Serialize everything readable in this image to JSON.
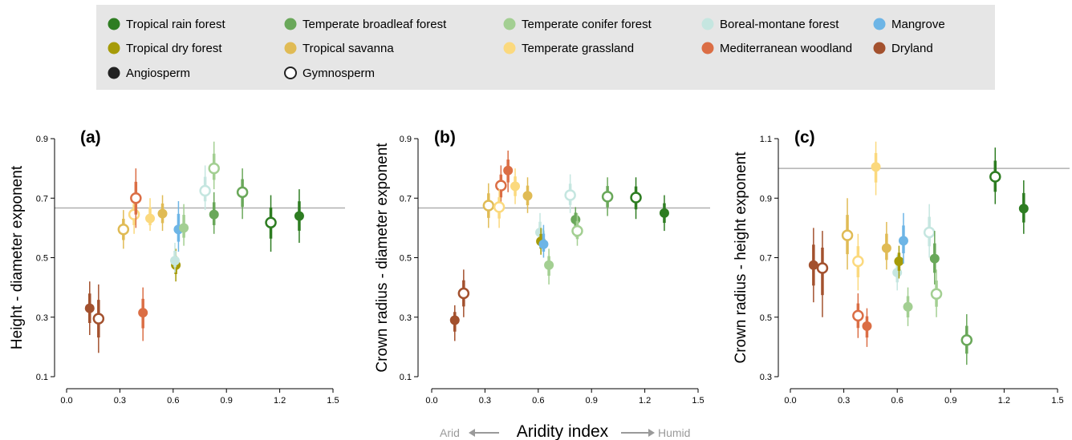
{
  "legend": {
    "biomes": [
      {
        "name": "Tropical rain forest",
        "color": "#2e7d22"
      },
      {
        "name": "Temperate broadleaf forest",
        "color": "#6aa85a"
      },
      {
        "name": "Temperate conifer forest",
        "color": "#a3cf92"
      },
      {
        "name": "Boreal-montane forest",
        "color": "#c5e6e0"
      },
      {
        "name": "Mangrove",
        "color": "#6db5e6"
      },
      {
        "name": "Tropical dry forest",
        "color": "#a69b08"
      },
      {
        "name": "Tropical savanna",
        "color": "#e0bb55"
      },
      {
        "name": "Temperate grassland",
        "color": "#fbd97e"
      },
      {
        "name": "Mediterranean woodland",
        "color": "#db6e45"
      },
      {
        "name": "Dryland",
        "color": "#a3512e"
      }
    ],
    "groups": [
      {
        "name": "Angiosperm",
        "style": "filled"
      },
      {
        "name": "Gymnosperm",
        "style": "open"
      }
    ]
  },
  "x_axis": {
    "title": "Aridity index",
    "left_note": "Arid",
    "right_note": "Humid",
    "ticks": [
      "0.0",
      "0.3",
      "0.6",
      "0.9",
      "1.2",
      "1.5"
    ]
  },
  "chart_data": [
    {
      "type": "scatter",
      "panel_label": "(a)",
      "ylabel": "Height - diameter exponent",
      "xlim": [
        0,
        1.5
      ],
      "ylim": [
        0.1,
        0.9
      ],
      "yticks": [
        "0.1",
        "0.3",
        "0.5",
        "0.7",
        "0.9"
      ],
      "reference_line": 0.667,
      "points": [
        {
          "biome": "Dryland",
          "group": "Angiosperm",
          "x": 0.13,
          "y": 0.33,
          "lo": 0.24,
          "hi": 0.42
        },
        {
          "biome": "Dryland",
          "group": "Gymnosperm",
          "x": 0.18,
          "y": 0.295,
          "lo": 0.18,
          "hi": 0.41
        },
        {
          "biome": "Tropical savanna",
          "group": "Gymnosperm",
          "x": 0.32,
          "y": 0.595,
          "lo": 0.53,
          "hi": 0.66
        },
        {
          "biome": "Temperate grassland",
          "group": "Gymnosperm",
          "x": 0.38,
          "y": 0.645,
          "lo": 0.58,
          "hi": 0.71
        },
        {
          "biome": "Mediterranean woodland",
          "group": "Gymnosperm",
          "x": 0.39,
          "y": 0.7,
          "lo": 0.6,
          "hi": 0.8
        },
        {
          "biome": "Mediterranean woodland",
          "group": "Angiosperm",
          "x": 0.43,
          "y": 0.315,
          "lo": 0.22,
          "hi": 0.4
        },
        {
          "biome": "Temperate grassland",
          "group": "Angiosperm",
          "x": 0.47,
          "y": 0.632,
          "lo": 0.59,
          "hi": 0.7
        },
        {
          "biome": "Tropical savanna",
          "group": "Angiosperm",
          "x": 0.54,
          "y": 0.648,
          "lo": 0.59,
          "hi": 0.71
        },
        {
          "biome": "Tropical dry forest",
          "group": "Angiosperm",
          "x": 0.615,
          "y": 0.475,
          "lo": 0.42,
          "hi": 0.53
        },
        {
          "biome": "Boreal-montane forest",
          "group": "Angiosperm",
          "x": 0.61,
          "y": 0.49,
          "lo": 0.45,
          "hi": 0.55
        },
        {
          "biome": "Mangrove",
          "group": "Angiosperm",
          "x": 0.63,
          "y": 0.595,
          "lo": 0.52,
          "hi": 0.69
        },
        {
          "biome": "Temperate conifer forest",
          "group": "Angiosperm",
          "x": 0.66,
          "y": 0.6,
          "lo": 0.54,
          "hi": 0.68
        },
        {
          "biome": "Boreal-montane forest",
          "group": "Gymnosperm",
          "x": 0.78,
          "y": 0.725,
          "lo": 0.66,
          "hi": 0.81
        },
        {
          "biome": "Temperate broadleaf forest",
          "group": "Angiosperm",
          "x": 0.83,
          "y": 0.645,
          "lo": 0.58,
          "hi": 0.72
        },
        {
          "biome": "Temperate conifer forest",
          "group": "Gymnosperm",
          "x": 0.83,
          "y": 0.8,
          "lo": 0.73,
          "hi": 0.89
        },
        {
          "biome": "Temperate broadleaf forest",
          "group": "Gymnosperm",
          "x": 0.99,
          "y": 0.72,
          "lo": 0.63,
          "hi": 0.8
        },
        {
          "biome": "Tropical rain forest",
          "group": "Gymnosperm",
          "x": 1.15,
          "y": 0.618,
          "lo": 0.52,
          "hi": 0.71
        },
        {
          "biome": "Tropical rain forest",
          "group": "Angiosperm",
          "x": 1.31,
          "y": 0.64,
          "lo": 0.55,
          "hi": 0.73
        }
      ]
    },
    {
      "type": "scatter",
      "panel_label": "(b)",
      "ylabel": "Crown radius - diameter exponent",
      "xlim": [
        0,
        1.5
      ],
      "ylim": [
        0.1,
        0.9
      ],
      "yticks": [
        "0.1",
        "0.3",
        "0.5",
        "0.7",
        "0.9"
      ],
      "reference_line": 0.667,
      "points": [
        {
          "biome": "Dryland",
          "group": "Angiosperm",
          "x": 0.13,
          "y": 0.29,
          "lo": 0.22,
          "hi": 0.34
        },
        {
          "biome": "Dryland",
          "group": "Gymnosperm",
          "x": 0.18,
          "y": 0.38,
          "lo": 0.3,
          "hi": 0.46
        },
        {
          "biome": "Tropical savanna",
          "group": "Gymnosperm",
          "x": 0.32,
          "y": 0.675,
          "lo": 0.6,
          "hi": 0.75
        },
        {
          "biome": "Mediterranean woodland",
          "group": "Gymnosperm",
          "x": 0.39,
          "y": 0.742,
          "lo": 0.67,
          "hi": 0.81
        },
        {
          "biome": "Temperate grassland",
          "group": "Gymnosperm",
          "x": 0.38,
          "y": 0.67,
          "lo": 0.6,
          "hi": 0.73
        },
        {
          "biome": "Mediterranean woodland",
          "group": "Angiosperm",
          "x": 0.43,
          "y": 0.793,
          "lo": 0.72,
          "hi": 0.86
        },
        {
          "biome": "Temperate grassland",
          "group": "Angiosperm",
          "x": 0.47,
          "y": 0.74,
          "lo": 0.68,
          "hi": 0.8
        },
        {
          "biome": "Tropical savanna",
          "group": "Angiosperm",
          "x": 0.54,
          "y": 0.708,
          "lo": 0.65,
          "hi": 0.77
        },
        {
          "biome": "Boreal-montane forest",
          "group": "Angiosperm",
          "x": 0.61,
          "y": 0.585,
          "lo": 0.53,
          "hi": 0.65
        },
        {
          "biome": "Tropical dry forest",
          "group": "Angiosperm",
          "x": 0.615,
          "y": 0.555,
          "lo": 0.51,
          "hi": 0.6
        },
        {
          "biome": "Mangrove",
          "group": "Angiosperm",
          "x": 0.63,
          "y": 0.545,
          "lo": 0.5,
          "hi": 0.61
        },
        {
          "biome": "Temperate conifer forest",
          "group": "Angiosperm",
          "x": 0.66,
          "y": 0.475,
          "lo": 0.41,
          "hi": 0.53
        },
        {
          "biome": "Boreal-montane forest",
          "group": "Gymnosperm",
          "x": 0.78,
          "y": 0.71,
          "lo": 0.65,
          "hi": 0.78
        },
        {
          "biome": "Temperate broadleaf forest",
          "group": "Angiosperm",
          "x": 0.81,
          "y": 0.628,
          "lo": 0.57,
          "hi": 0.67
        },
        {
          "biome": "Temperate conifer forest",
          "group": "Gymnosperm",
          "x": 0.82,
          "y": 0.59,
          "lo": 0.54,
          "hi": 0.65
        },
        {
          "biome": "Temperate broadleaf forest",
          "group": "Gymnosperm",
          "x": 0.99,
          "y": 0.705,
          "lo": 0.64,
          "hi": 0.77
        },
        {
          "biome": "Tropical rain forest",
          "group": "Gymnosperm",
          "x": 1.15,
          "y": 0.702,
          "lo": 0.63,
          "hi": 0.77
        },
        {
          "biome": "Tropical rain forest",
          "group": "Angiosperm",
          "x": 1.31,
          "y": 0.65,
          "lo": 0.59,
          "hi": 0.71
        }
      ]
    },
    {
      "type": "scatter",
      "panel_label": "(c)",
      "ylabel": "Crown radius - height exponent",
      "xlim": [
        0,
        1.5
      ],
      "ylim": [
        0.3,
        1.1
      ],
      "yticks": [
        "0.3",
        "0.5",
        "0.7",
        "0.9",
        "1.1"
      ],
      "reference_line": 1.0,
      "points": [
        {
          "biome": "Dryland",
          "group": "Angiosperm",
          "x": 0.13,
          "y": 0.675,
          "lo": 0.55,
          "hi": 0.8
        },
        {
          "biome": "Dryland",
          "group": "Gymnosperm",
          "x": 0.18,
          "y": 0.665,
          "lo": 0.5,
          "hi": 0.79
        },
        {
          "biome": "Tropical savanna",
          "group": "Gymnosperm",
          "x": 0.32,
          "y": 0.775,
          "lo": 0.66,
          "hi": 0.9
        },
        {
          "biome": "Temperate grassland",
          "group": "Gymnosperm",
          "x": 0.38,
          "y": 0.688,
          "lo": 0.59,
          "hi": 0.78
        },
        {
          "biome": "Mediterranean woodland",
          "group": "Gymnosperm",
          "x": 0.38,
          "y": 0.505,
          "lo": 0.43,
          "hi": 0.58
        },
        {
          "biome": "Mediterranean woodland",
          "group": "Angiosperm",
          "x": 0.43,
          "y": 0.47,
          "lo": 0.4,
          "hi": 0.53
        },
        {
          "biome": "Temperate grassland",
          "group": "Angiosperm",
          "x": 0.48,
          "y": 1.005,
          "lo": 0.91,
          "hi": 1.09
        },
        {
          "biome": "Tropical savanna",
          "group": "Angiosperm",
          "x": 0.54,
          "y": 0.732,
          "lo": 0.66,
          "hi": 0.82
        },
        {
          "biome": "Boreal-montane forest",
          "group": "Angiosperm",
          "x": 0.6,
          "y": 0.65,
          "lo": 0.59,
          "hi": 0.71
        },
        {
          "biome": "Tropical dry forest",
          "group": "Angiosperm",
          "x": 0.61,
          "y": 0.688,
          "lo": 0.63,
          "hi": 0.74
        },
        {
          "biome": "Mangrove",
          "group": "Angiosperm",
          "x": 0.635,
          "y": 0.757,
          "lo": 0.68,
          "hi": 0.85
        },
        {
          "biome": "Temperate conifer forest",
          "group": "Angiosperm",
          "x": 0.66,
          "y": 0.535,
          "lo": 0.47,
          "hi": 0.6
        },
        {
          "biome": "Boreal-montane forest",
          "group": "Gymnosperm",
          "x": 0.78,
          "y": 0.785,
          "lo": 0.7,
          "hi": 0.88
        },
        {
          "biome": "Temperate broadleaf forest",
          "group": "Angiosperm",
          "x": 0.81,
          "y": 0.697,
          "lo": 0.61,
          "hi": 0.79
        },
        {
          "biome": "Temperate conifer forest",
          "group": "Gymnosperm",
          "x": 0.82,
          "y": 0.578,
          "lo": 0.5,
          "hi": 0.66
        },
        {
          "biome": "Temperate broadleaf forest",
          "group": "Gymnosperm",
          "x": 0.99,
          "y": 0.423,
          "lo": 0.34,
          "hi": 0.51
        },
        {
          "biome": "Tropical rain forest",
          "group": "Gymnosperm",
          "x": 1.15,
          "y": 0.972,
          "lo": 0.88,
          "hi": 1.07
        },
        {
          "biome": "Tropical rain forest",
          "group": "Angiosperm",
          "x": 1.31,
          "y": 0.865,
          "lo": 0.78,
          "hi": 0.96
        }
      ]
    }
  ]
}
